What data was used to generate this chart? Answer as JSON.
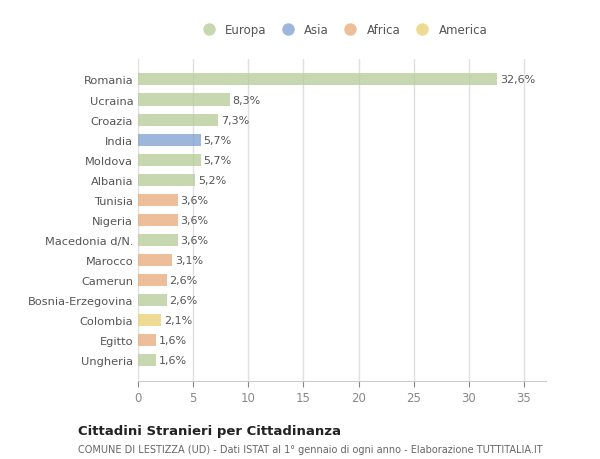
{
  "countries": [
    "Romania",
    "Ucraina",
    "Croazia",
    "India",
    "Moldova",
    "Albania",
    "Tunisia",
    "Nigeria",
    "Macedonia d/N.",
    "Marocco",
    "Camerun",
    "Bosnia-Erzegovina",
    "Colombia",
    "Egitto",
    "Ungheria"
  ],
  "values": [
    32.6,
    8.3,
    7.3,
    5.7,
    5.7,
    5.2,
    3.6,
    3.6,
    3.6,
    3.1,
    2.6,
    2.6,
    2.1,
    1.6,
    1.6
  ],
  "labels": [
    "32,6%",
    "8,3%",
    "7,3%",
    "5,7%",
    "5,7%",
    "5,2%",
    "3,6%",
    "3,6%",
    "3,6%",
    "3,1%",
    "2,6%",
    "2,6%",
    "2,1%",
    "1,6%",
    "1,6%"
  ],
  "continents": [
    "Europa",
    "Europa",
    "Europa",
    "Asia",
    "Europa",
    "Europa",
    "Africa",
    "Africa",
    "Europa",
    "Africa",
    "Africa",
    "Europa",
    "America",
    "Africa",
    "Europa"
  ],
  "colors": {
    "Europa": "#b5cc96",
    "Asia": "#7b9fcf",
    "Africa": "#e8a878",
    "America": "#e8d070"
  },
  "legend_order": [
    "Europa",
    "Asia",
    "Africa",
    "America"
  ],
  "bg_color": "#ffffff",
  "plot_bg_color": "#ffffff",
  "grid_color": "#e0e0e0",
  "title": "Cittadini Stranieri per Cittadinanza",
  "subtitle": "COMUNE DI LESTIZZA (UD) - Dati ISTAT al 1° gennaio di ogni anno - Elaborazione TUTTITALIA.IT",
  "xlim": [
    0,
    37
  ],
  "xticks": [
    0,
    5,
    10,
    15,
    20,
    25,
    30,
    35
  ],
  "bar_alpha": 0.75
}
